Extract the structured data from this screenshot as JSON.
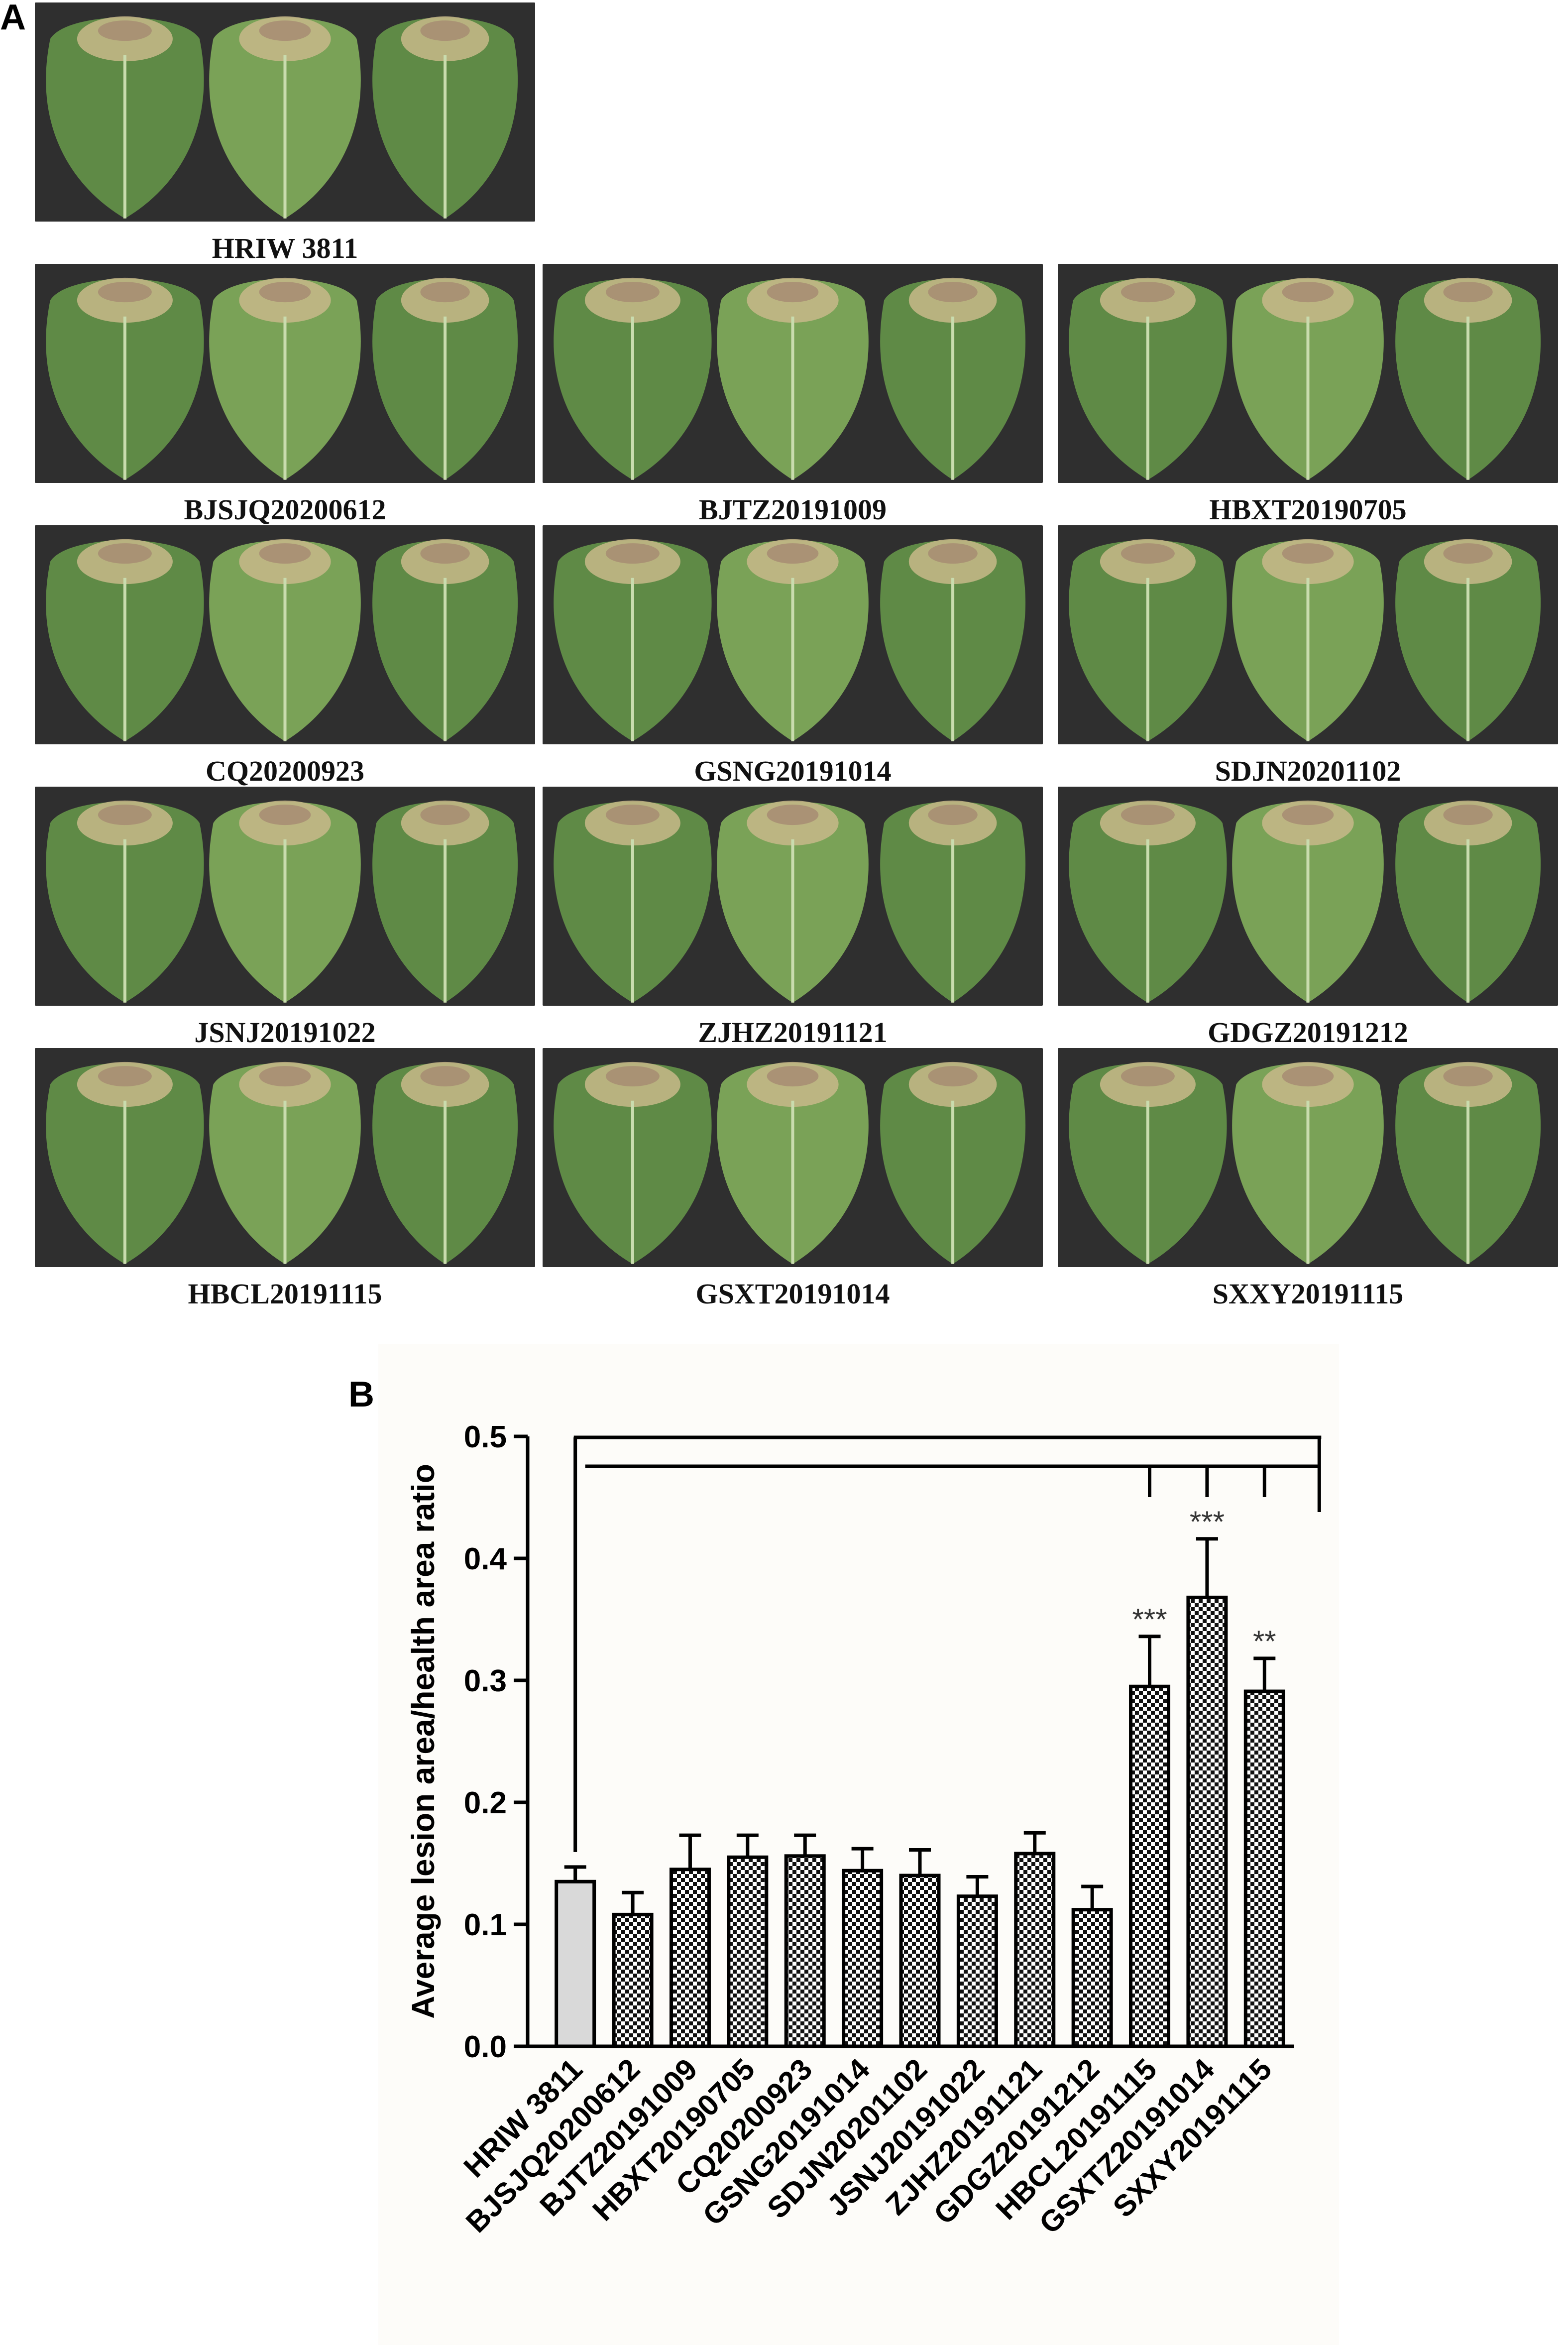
{
  "panel_a": {
    "letter": "A",
    "panels": [
      {
        "caption": "HRIW 3811"
      },
      {
        "caption": "BJSJQ20200612"
      },
      {
        "caption": "BJTZ20191009"
      },
      {
        "caption": "HBXT20190705"
      },
      {
        "caption": "CQ20200923"
      },
      {
        "caption": "GSNG20191014"
      },
      {
        "caption": "SDJN20201102"
      },
      {
        "caption": "JSNJ20191022"
      },
      {
        "caption": "ZJHZ20191121"
      },
      {
        "caption": "GDGZ20191212"
      },
      {
        "caption": "HBCL20191115"
      },
      {
        "caption": "GSXT20191014"
      },
      {
        "caption": "SXXY20191115"
      }
    ],
    "leaf_colors": {
      "background": "#2f2f2f",
      "leaf": "#7aa257",
      "leaf_dark": "#5f8a46",
      "vein": "#c9dcae",
      "lesion": "#c8b98a",
      "lesion_core": "#a58a72"
    }
  },
  "panel_b": {
    "letter": "B"
  },
  "chart_data": {
    "type": "bar",
    "ylabel": "Average lesion area/health area ratio",
    "xlabel": "",
    "ylim": [
      0,
      0.5
    ],
    "yticks": [
      "0.0",
      "0.1",
      "0.2",
      "0.3",
      "0.4",
      "0.5"
    ],
    "categories": [
      "HRIW 3811",
      "BJSJQ20200612",
      "BJTZ20191009",
      "HBXT20190705",
      "CQ20200923",
      "GSNG20191014",
      "SDJN20201102",
      "JSNJ20191022",
      "ZJHZ20191121",
      "GDGZ20191212",
      "HBCL20191115",
      "GSXTZ20191014",
      "SXXY20191115"
    ],
    "values": [
      0.135,
      0.108,
      0.145,
      0.155,
      0.156,
      0.144,
      0.14,
      0.123,
      0.158,
      0.112,
      0.295,
      0.368,
      0.291
    ],
    "errors": [
      0.012,
      0.018,
      0.028,
      0.018,
      0.017,
      0.018,
      0.021,
      0.016,
      0.017,
      0.019,
      0.041,
      0.048,
      0.027
    ],
    "significance": [
      "",
      "",
      "",
      "",
      "",
      "",
      "",
      "",
      "",
      "",
      "***",
      "***",
      "**"
    ],
    "control_index": 0,
    "bar_colors": {
      "control": "#d9d9d9",
      "pattern": "checker"
    },
    "grid": false,
    "legend": "none"
  }
}
